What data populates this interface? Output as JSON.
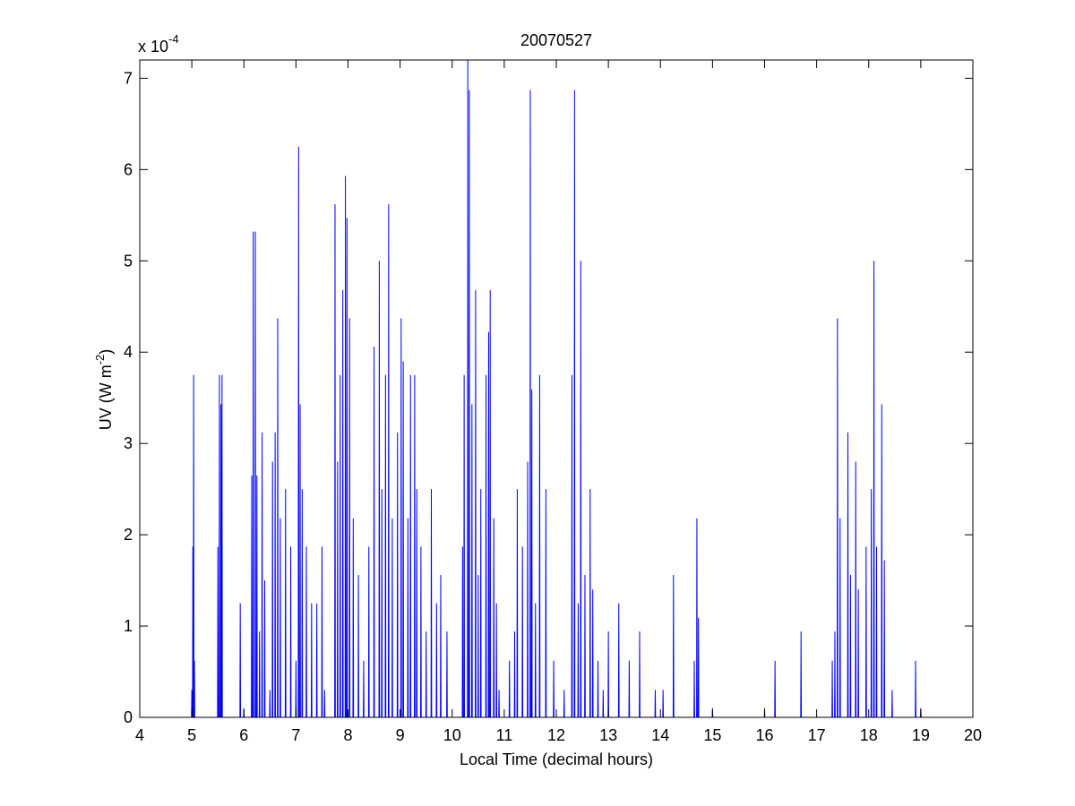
{
  "chart_data": {
    "type": "line",
    "title": "20070527",
    "xlabel": "Local Time (decimal hours)",
    "ylabel": {
      "main": "UV (W m",
      "sup": "-2",
      "end": ")"
    },
    "y_multiplier": {
      "base": "x 10",
      "exp": "-4"
    },
    "xlim": [
      4,
      20
    ],
    "xticks": [
      4,
      5,
      6,
      7,
      8,
      9,
      10,
      11,
      12,
      13,
      14,
      15,
      16,
      17,
      18,
      19,
      20
    ],
    "ylim": [
      0,
      7.2
    ],
    "yticks": [
      0,
      1,
      2,
      3,
      4,
      5,
      6,
      7
    ],
    "grid": false,
    "series": [
      {
        "color": "#0000ff",
        "x": [
          4.994,
          5,
          5.006,
          5.014,
          5.02,
          5.026,
          5.029,
          5.035,
          5.041,
          5.044,
          5.05,
          5.056,
          5.494,
          5.5,
          5.506,
          5.524,
          5.53,
          5.536,
          5.554,
          5.56,
          5.566,
          5.574,
          5.58,
          5.586,
          5.924,
          5.93,
          5.936,
          5.994,
          6,
          6.006,
          6.144,
          6.15,
          6.156,
          6.174,
          6.18,
          6.186,
          6.214,
          6.22,
          6.226,
          6.244,
          6.25,
          6.256,
          6.294,
          6.3,
          6.306,
          6.344,
          6.35,
          6.356,
          6.394,
          6.4,
          6.406,
          6.494,
          6.5,
          6.506,
          6.544,
          6.55,
          6.556,
          6.594,
          6.6,
          6.606,
          6.644,
          6.65,
          6.656,
          6.694,
          6.7,
          6.706,
          6.794,
          6.8,
          6.806,
          6.894,
          6.9,
          6.906,
          6.994,
          7,
          7.006,
          7.044,
          7.05,
          7.056,
          7.074,
          7.08,
          7.086,
          7.114,
          7.12,
          7.126,
          7.194,
          7.2,
          7.206,
          7.294,
          7.3,
          7.306,
          7.394,
          7.4,
          7.406,
          7.494,
          7.5,
          7.506,
          7.544,
          7.55,
          7.556,
          7.744,
          7.75,
          7.756,
          7.794,
          7.8,
          7.806,
          7.844,
          7.85,
          7.856,
          7.894,
          7.9,
          7.906,
          7.944,
          7.95,
          7.956,
          7.974,
          7.98,
          7.986,
          8.024,
          8.03,
          8.036,
          8.094,
          8.1,
          8.106,
          8.194,
          8.2,
          8.206,
          8.294,
          8.3,
          8.306,
          8.394,
          8.4,
          8.406,
          8.494,
          8.5,
          8.506,
          8.594,
          8.6,
          8.606,
          8.644,
          8.65,
          8.656,
          8.714,
          8.72,
          8.726,
          8.774,
          8.78,
          8.786,
          8.844,
          8.85,
          8.856,
          8.944,
          8.95,
          8.956,
          9.014,
          9.02,
          9.026,
          9.054,
          9.06,
          9.066,
          9.144,
          9.15,
          9.156,
          9.194,
          9.2,
          9.206,
          9.274,
          9.28,
          9.286,
          9.314,
          9.32,
          9.326,
          9.394,
          9.4,
          9.406,
          9.494,
          9.5,
          9.506,
          9.594,
          9.6,
          9.606,
          9.694,
          9.7,
          9.706,
          9.774,
          9.78,
          9.786,
          9.894,
          9.9,
          9.906,
          10.194,
          10.2,
          10.206,
          10.224,
          10.23,
          10.236,
          10.294,
          10.3,
          10.306,
          10.324,
          10.33,
          10.336,
          10.374,
          10.38,
          10.386,
          10.444,
          10.45,
          10.456,
          10.494,
          10.5,
          10.506,
          10.544,
          10.55,
          10.556,
          10.644,
          10.65,
          10.656,
          10.694,
          10.7,
          10.706,
          10.724,
          10.73,
          10.736,
          10.794,
          10.8,
          10.806,
          10.844,
          10.85,
          10.856,
          10.894,
          10.9,
          10.906,
          11.094,
          11.1,
          11.106,
          11.194,
          11.2,
          11.206,
          11.244,
          11.25,
          11.256,
          11.344,
          11.35,
          11.356,
          11.444,
          11.45,
          11.456,
          11.494,
          11.5,
          11.506,
          11.524,
          11.53,
          11.536,
          11.594,
          11.6,
          11.606,
          11.674,
          11.68,
          11.686,
          11.794,
          11.8,
          11.806,
          11.944,
          11.95,
          11.956,
          12.144,
          12.15,
          12.156,
          12.294,
          12.3,
          12.306,
          12.344,
          12.35,
          12.356,
          12.414,
          12.42,
          12.426,
          12.464,
          12.47,
          12.476,
          12.544,
          12.55,
          12.556,
          12.644,
          12.65,
          12.656,
          12.694,
          12.7,
          12.706,
          12.794,
          12.8,
          12.806,
          12.894,
          12.9,
          12.906,
          12.994,
          13,
          13.006,
          13.194,
          13.2,
          13.206,
          13.394,
          13.4,
          13.406,
          13.594,
          13.6,
          13.606,
          13.894,
          13.9,
          13.906,
          14.044,
          14.05,
          14.056,
          14.244,
          14.25,
          14.256,
          14.644,
          14.65,
          14.656,
          14.694,
          14.7,
          14.706,
          14.724,
          14.73,
          14.736,
          14.994,
          15,
          15.006,
          15.994,
          16,
          16.006,
          16.194,
          16.2,
          16.206,
          16.694,
          16.7,
          16.706,
          17.294,
          17.3,
          17.306,
          17.344,
          17.35,
          17.356,
          17.394,
          17.4,
          17.406,
          17.444,
          17.45,
          17.456,
          17.594,
          17.6,
          17.606,
          17.644,
          17.65,
          17.656,
          17.744,
          17.75,
          17.756,
          17.794,
          17.8,
          17.806,
          17.944,
          17.95,
          17.956,
          18.044,
          18.05,
          18.056,
          18.094,
          18.1,
          18.106,
          18.144,
          18.15,
          18.156,
          18.244,
          18.25,
          18.256,
          18.294,
          18.3,
          18.306,
          18.444,
          18.45,
          18.456,
          18.894,
          18.9,
          18.906,
          18.994,
          19,
          19.006
        ],
        "values": [
          0,
          0.3,
          0,
          0,
          1.87,
          0,
          0,
          3.75,
          0,
          0,
          0.62,
          0,
          0,
          1.87,
          0,
          0,
          3.75,
          0,
          0,
          3.43,
          0,
          0,
          3.75,
          0,
          0,
          1.25,
          0,
          0,
          0.1,
          0,
          0,
          2.65,
          0,
          0,
          5.32,
          0,
          0,
          5.32,
          0,
          0,
          2.65,
          0,
          0,
          0.94,
          0,
          0,
          3.12,
          0,
          0,
          1.5,
          0,
          0,
          0.3,
          0,
          0,
          2.8,
          0,
          0,
          3.12,
          0,
          0,
          4.37,
          0,
          0,
          2.18,
          0,
          0,
          2.5,
          0,
          0,
          1.87,
          0,
          0,
          0.62,
          0,
          0,
          6.25,
          0,
          0,
          3.43,
          0,
          0,
          2.5,
          0,
          0,
          1.87,
          0,
          0,
          1.25,
          0,
          0,
          1.25,
          0,
          0,
          1.87,
          0,
          0,
          0.3,
          0,
          0,
          5.62,
          0,
          0,
          2.8,
          0,
          0,
          3.75,
          0,
          0,
          4.68,
          0,
          0,
          5.93,
          0,
          0,
          5.47,
          0,
          0,
          4.37,
          0,
          0,
          2.18,
          0,
          0,
          1.56,
          0,
          0,
          0.62,
          0,
          0,
          1.87,
          0,
          0,
          4.06,
          0,
          0,
          5.0,
          0,
          0,
          2.5,
          0,
          0,
          3.75,
          0,
          0,
          5.62,
          0,
          0,
          2.18,
          0,
          0,
          3.12,
          0,
          0,
          4.37,
          0,
          0,
          3.9,
          0,
          0,
          2.18,
          0,
          0,
          3.75,
          0,
          0,
          3.75,
          0,
          0,
          2.5,
          0,
          0,
          1.87,
          0,
          0,
          0.94,
          0,
          0,
          2.5,
          0,
          0,
          1.25,
          0,
          0,
          1.56,
          0,
          0,
          0.94,
          0,
          0,
          1.87,
          0,
          0,
          3.75,
          0,
          0,
          7.2,
          0,
          0,
          6.87,
          0,
          0,
          3.43,
          0,
          0,
          4.68,
          0,
          0,
          1.56,
          0,
          0,
          2.5,
          0,
          0,
          3.75,
          0,
          0,
          4.22,
          0,
          0,
          4.68,
          0,
          0,
          2.18,
          0,
          0,
          1.25,
          0,
          0,
          0.3,
          0,
          0,
          0.62,
          0,
          0,
          0.94,
          0,
          0,
          2.5,
          0,
          0,
          1.87,
          0,
          0,
          2.8,
          0,
          0,
          6.87,
          0,
          0,
          3.59,
          0,
          0,
          1.25,
          0,
          0,
          3.75,
          0,
          0,
          2.5,
          0,
          0,
          0.62,
          0,
          0,
          0.3,
          0,
          0,
          3.75,
          0,
          0,
          6.87,
          0,
          0,
          1.25,
          0,
          0,
          5.0,
          0,
          0,
          1.56,
          0,
          0,
          2.5,
          0,
          0,
          1.4,
          0,
          0,
          0.62,
          0,
          0,
          0.3,
          0,
          0,
          0.94,
          0,
          0,
          1.25,
          0,
          0,
          0.62,
          0,
          0,
          0.94,
          0,
          0,
          0.3,
          0,
          0,
          0.3,
          0,
          0,
          1.56,
          0,
          0,
          0.62,
          0,
          0,
          2.18,
          0,
          0,
          1.09,
          0,
          0,
          0.1,
          0,
          0,
          0.1,
          0,
          0,
          0.62,
          0,
          0,
          0.94,
          0,
          0,
          0.62,
          0,
          0,
          0.94,
          0,
          0,
          4.37,
          0,
          0,
          2.18,
          0,
          0,
          3.12,
          0,
          0,
          1.56,
          0,
          0,
          2.8,
          0,
          0,
          1.4,
          0,
          0,
          1.87,
          0,
          0,
          2.5,
          0,
          0,
          5.0,
          0,
          0,
          1.87,
          0,
          0,
          3.43,
          0,
          0,
          1.72,
          0,
          0,
          0.3,
          0,
          0,
          0.62,
          0,
          0,
          0.1,
          0
        ]
      }
    ]
  }
}
